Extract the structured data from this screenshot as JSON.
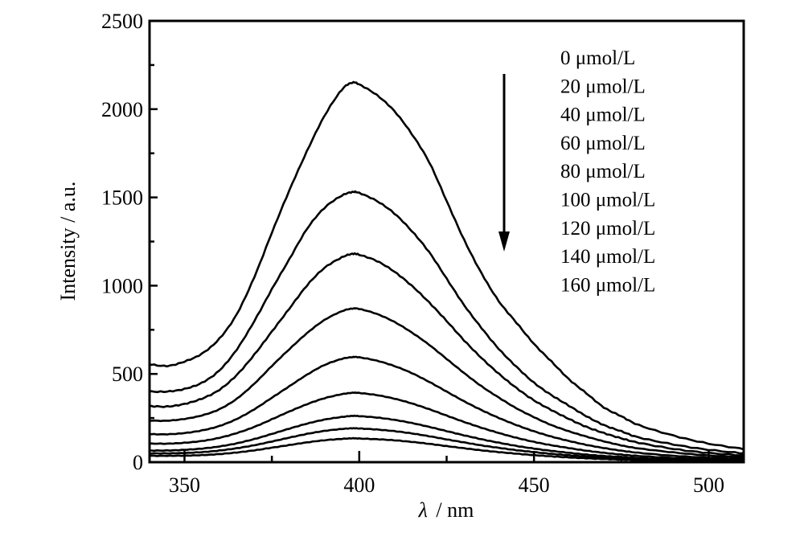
{
  "chart_data": {
    "type": "line",
    "title": "",
    "xlabel": "λ / nm",
    "xlabel_symbol": "λ",
    "xlabel_unit": "/ nm",
    "ylabel": "Intensity / a.u.",
    "xlim": [
      340,
      510
    ],
    "ylim": [
      0,
      2500
    ],
    "x_major_ticks": [
      350,
      400,
      450,
      500
    ],
    "x_minor_ticks": [
      375,
      425,
      475
    ],
    "y_major_ticks": [
      0,
      500,
      1000,
      1500,
      2000,
      2500
    ],
    "y_minor_ticks": [
      250,
      750,
      1250,
      1750,
      2250
    ],
    "x_tick_labels": [
      "350",
      "400",
      "450",
      "500"
    ],
    "y_tick_labels": [
      "0",
      "500",
      "1000",
      "1500",
      "2000",
      "2500"
    ],
    "grid": false,
    "legend_position": "top-right",
    "annotation": {
      "type": "arrow",
      "direction": "down",
      "meaning": "increasing concentration decreases intensity"
    },
    "x": [
      340,
      345,
      350,
      355,
      360,
      365,
      370,
      375,
      380,
      385,
      390,
      395,
      398,
      400,
      405,
      410,
      415,
      420,
      425,
      430,
      435,
      440,
      445,
      450,
      455,
      460,
      465,
      470,
      475,
      480,
      490,
      500,
      510
    ],
    "series": [
      {
        "name": "0 μmol/L",
        "values": [
          555,
          545,
          570,
          615,
          700,
          840,
          1050,
          1300,
          1540,
          1760,
          1960,
          2110,
          2150,
          2140,
          2080,
          1990,
          1860,
          1700,
          1480,
          1260,
          1070,
          910,
          790,
          670,
          570,
          470,
          390,
          310,
          260,
          210,
          150,
          105,
          75
        ]
      },
      {
        "name": "20 μmol/L",
        "values": [
          400,
          400,
          415,
          450,
          520,
          640,
          800,
          980,
          1150,
          1320,
          1440,
          1510,
          1530,
          1525,
          1480,
          1410,
          1310,
          1190,
          1040,
          890,
          760,
          640,
          540,
          450,
          380,
          320,
          260,
          210,
          175,
          140,
          100,
          70,
          50
        ]
      },
      {
        "name": "40 μmol/L",
        "values": [
          318,
          315,
          330,
          360,
          410,
          495,
          610,
          740,
          870,
          1000,
          1100,
          1160,
          1180,
          1175,
          1140,
          1080,
          1000,
          905,
          800,
          690,
          590,
          500,
          420,
          350,
          295,
          245,
          200,
          165,
          135,
          110,
          75,
          52,
          38
        ]
      },
      {
        "name": "60 μmol/L",
        "values": [
          236,
          235,
          245,
          265,
          300,
          360,
          445,
          545,
          640,
          730,
          805,
          855,
          870,
          868,
          840,
          795,
          735,
          665,
          585,
          505,
          430,
          365,
          305,
          255,
          210,
          175,
          145,
          118,
          95,
          78,
          55,
          38,
          28
        ]
      },
      {
        "name": "80 μmol/L",
        "values": [
          159,
          158,
          165,
          180,
          205,
          245,
          300,
          365,
          430,
          495,
          550,
          585,
          595,
          594,
          575,
          545,
          505,
          455,
          400,
          345,
          295,
          250,
          210,
          175,
          145,
          120,
          98,
          80,
          65,
          53,
          36,
          26,
          19
        ]
      },
      {
        "name": "100 μmol/L",
        "values": [
          105,
          105,
          110,
          120,
          138,
          165,
          200,
          243,
          287,
          328,
          362,
          385,
          393,
          392,
          380,
          360,
          333,
          300,
          264,
          228,
          195,
          165,
          138,
          115,
          96,
          80,
          65,
          53,
          43,
          35,
          24,
          17,
          13
        ]
      },
      {
        "name": "120 μmol/L",
        "values": [
          66,
          66,
          70,
          77,
          89,
          107,
          131,
          160,
          190,
          218,
          241,
          256,
          262,
          261,
          253,
          240,
          222,
          200,
          176,
          152,
          130,
          110,
          92,
          77,
          64,
          53,
          43,
          35,
          29,
          23,
          16,
          11,
          9
        ]
      },
      {
        "name": "140 μmol/L",
        "values": [
          50,
          50,
          52,
          57,
          66,
          79,
          96,
          117,
          139,
          160,
          177,
          188,
          192,
          191,
          185,
          176,
          163,
          147,
          129,
          112,
          95,
          81,
          68,
          57,
          47,
          39,
          32,
          26,
          21,
          17,
          12,
          8,
          7
        ]
      },
      {
        "name": "160 μmol/L",
        "values": [
          36,
          36,
          37,
          40,
          46,
          55,
          67,
          82,
          97,
          112,
          124,
          132,
          135,
          134,
          130,
          124,
          115,
          104,
          91,
          79,
          67,
          57,
          48,
          40,
          33,
          27,
          22,
          18,
          15,
          12,
          8,
          6,
          5
        ]
      }
    ],
    "legend": [
      "0 μmol/L",
      "20 μmol/L",
      "40 μmol/L",
      "60 μmol/L",
      "80 μmol/L",
      "100 μmol/L",
      "120 μmol/L",
      "140 μmol/L",
      "160 μmol/L"
    ],
    "colors": {
      "line": "#000000",
      "axis": "#000000",
      "background": "#ffffff"
    }
  }
}
